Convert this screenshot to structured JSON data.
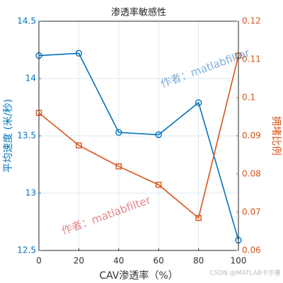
{
  "chart_data": {
    "type": "line",
    "title": "渗透率敏感性",
    "xlabel": "CAV渗透率（%）",
    "ylabel": "平均速度 (米/秒)",
    "y2label": "拥堵比例",
    "x": [
      0,
      20,
      40,
      60,
      80,
      100
    ],
    "series": [
      {
        "name": "平均速度",
        "color": "#0072BD",
        "marker": "circle",
        "values": [
          14.2,
          14.22,
          13.53,
          13.51,
          13.79,
          12.59
        ]
      },
      {
        "name": "拥堵比例",
        "color": "#D95319",
        "marker": "square",
        "axis": "y2",
        "values": [
          0.096,
          0.0875,
          0.082,
          0.0772,
          0.0685,
          0.111
        ]
      }
    ],
    "xlim": [
      0,
      100
    ],
    "xticks": [
      0,
      20,
      40,
      60,
      80,
      100
    ],
    "ylim": [
      12.5,
      14.5
    ],
    "yticks": [
      12.5,
      13,
      13.5,
      14,
      14.5
    ],
    "y2lim": [
      0.06,
      0.12
    ],
    "y2ticks": [
      0.06,
      0.07,
      0.08,
      0.09,
      0.1,
      0.11,
      0.12
    ],
    "grid": true,
    "legend": false,
    "annotations": [
      "作者：matlabfilter",
      "作者：matlabfilter",
      "CSDN @MATLAB卡尔曼"
    ]
  }
}
